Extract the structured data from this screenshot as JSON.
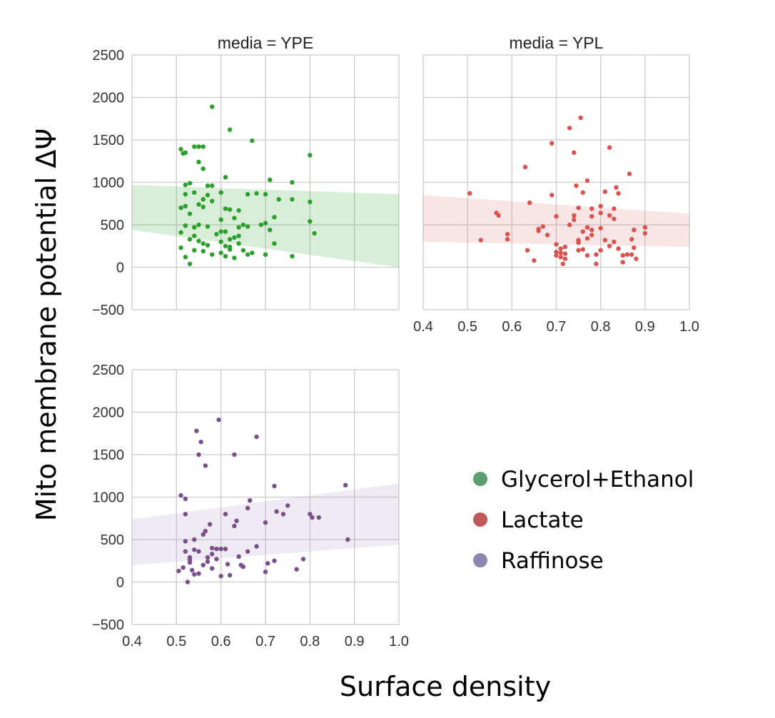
{
  "chart_data": {
    "type": "scatter",
    "xlabel": "Surface density",
    "ylabel": "Mito membrane potential ΔΨ",
    "xlim": [
      0.4,
      1.0
    ],
    "ylim": [
      -500,
      2500
    ],
    "xticks": [
      "0.4",
      "0.5",
      "0.6",
      "0.7",
      "0.8",
      "0.9",
      "1.0"
    ],
    "yticks": [
      "−500",
      "0",
      "500",
      "1000",
      "1500",
      "2000",
      "2500"
    ],
    "grid": true,
    "legend": {
      "placement": "right",
      "entries": [
        {
          "label": "Glycerol+Ethanol",
          "color": "#5a9e6f"
        },
        {
          "label": "Lactate",
          "color": "#c05a5a"
        },
        {
          "label": "Raffinose",
          "color": "#8c86b0"
        }
      ]
    },
    "panels": [
      {
        "title": "media = YPE",
        "series": "Glycerol+Ethanol",
        "point_color": "#2ca02c",
        "band_color": "#2ca02c",
        "show_xticks": false,
        "band": {
          "x": [
            0.4,
            1.0
          ],
          "upper": [
            970,
            860
          ],
          "lower": [
            440,
            0
          ]
        },
        "points": [
          [
            0.51,
            1390
          ],
          [
            0.515,
            1340
          ],
          [
            0.52,
            1350
          ],
          [
            0.54,
            1420
          ],
          [
            0.55,
            1420
          ],
          [
            0.56,
            1420
          ],
          [
            0.58,
            1890
          ],
          [
            0.55,
            1240
          ],
          [
            0.56,
            1160
          ],
          [
            0.52,
            970
          ],
          [
            0.53,
            990
          ],
          [
            0.57,
            960
          ],
          [
            0.58,
            960
          ],
          [
            0.52,
            860
          ],
          [
            0.54,
            880
          ],
          [
            0.57,
            850
          ],
          [
            0.56,
            800
          ],
          [
            0.52,
            720
          ],
          [
            0.51,
            700
          ],
          [
            0.53,
            630
          ],
          [
            0.55,
            740
          ],
          [
            0.56,
            710
          ],
          [
            0.58,
            780
          ],
          [
            0.52,
            490
          ],
          [
            0.54,
            470
          ],
          [
            0.55,
            500
          ],
          [
            0.57,
            480
          ],
          [
            0.51,
            410
          ],
          [
            0.53,
            330
          ],
          [
            0.54,
            370
          ],
          [
            0.55,
            310
          ],
          [
            0.56,
            280
          ],
          [
            0.57,
            260
          ],
          [
            0.51,
            230
          ],
          [
            0.52,
            120
          ],
          [
            0.53,
            40
          ],
          [
            0.54,
            200
          ],
          [
            0.56,
            190
          ],
          [
            0.58,
            150
          ],
          [
            0.6,
            880
          ],
          [
            0.61,
            1060
          ],
          [
            0.62,
            1620
          ],
          [
            0.6,
            560
          ],
          [
            0.61,
            690
          ],
          [
            0.62,
            680
          ],
          [
            0.63,
            580
          ],
          [
            0.64,
            670
          ],
          [
            0.65,
            500
          ],
          [
            0.66,
            480
          ],
          [
            0.66,
            860
          ],
          [
            0.67,
            1490
          ],
          [
            0.68,
            870
          ],
          [
            0.6,
            300
          ],
          [
            0.61,
            250
          ],
          [
            0.62,
            240
          ],
          [
            0.63,
            350
          ],
          [
            0.64,
            370
          ],
          [
            0.6,
            170
          ],
          [
            0.61,
            130
          ],
          [
            0.62,
            210
          ],
          [
            0.63,
            110
          ],
          [
            0.64,
            280
          ],
          [
            0.65,
            200
          ],
          [
            0.66,
            150
          ],
          [
            0.67,
            170
          ],
          [
            0.6,
            420
          ],
          [
            0.62,
            330
          ],
          [
            0.64,
            470
          ],
          [
            0.69,
            500
          ],
          [
            0.7,
            520
          ],
          [
            0.71,
            1030
          ],
          [
            0.7,
            860
          ],
          [
            0.71,
            440
          ],
          [
            0.72,
            590
          ],
          [
            0.7,
            150
          ],
          [
            0.72,
            280
          ],
          [
            0.73,
            800
          ],
          [
            0.76,
            1000
          ],
          [
            0.76,
            800
          ],
          [
            0.76,
            130
          ],
          [
            0.8,
            1320
          ],
          [
            0.8,
            770
          ],
          [
            0.8,
            540
          ],
          [
            0.81,
            400
          ],
          [
            0.59,
            390
          ],
          [
            0.61,
            420
          ]
        ]
      },
      {
        "title": "media = YPL",
        "series": "Lactate",
        "point_color": "#d9534f",
        "band_color": "#e07070",
        "show_xticks": true,
        "show_yticks": false,
        "band": {
          "x": [
            0.4,
            1.0
          ],
          "upper": [
            850,
            630
          ],
          "lower": [
            300,
            240
          ]
        },
        "points": [
          [
            0.505,
            870
          ],
          [
            0.53,
            320
          ],
          [
            0.565,
            640
          ],
          [
            0.57,
            610
          ],
          [
            0.59,
            390
          ],
          [
            0.59,
            330
          ],
          [
            0.63,
            1180
          ],
          [
            0.64,
            760
          ],
          [
            0.635,
            200
          ],
          [
            0.65,
            80
          ],
          [
            0.66,
            450
          ],
          [
            0.67,
            480
          ],
          [
            0.68,
            380
          ],
          [
            0.69,
            1460
          ],
          [
            0.69,
            850
          ],
          [
            0.7,
            600
          ],
          [
            0.7,
            270
          ],
          [
            0.7,
            180
          ],
          [
            0.7,
            140
          ],
          [
            0.71,
            120
          ],
          [
            0.71,
            220
          ],
          [
            0.715,
            40
          ],
          [
            0.72,
            240
          ],
          [
            0.72,
            160
          ],
          [
            0.72,
            100
          ],
          [
            0.73,
            1640
          ],
          [
            0.74,
            1350
          ],
          [
            0.74,
            610
          ],
          [
            0.74,
            560
          ],
          [
            0.745,
            960
          ],
          [
            0.75,
            700
          ],
          [
            0.75,
            320
          ],
          [
            0.75,
            290
          ],
          [
            0.75,
            200
          ],
          [
            0.755,
            1760
          ],
          [
            0.76,
            880
          ],
          [
            0.76,
            420
          ],
          [
            0.76,
            210
          ],
          [
            0.77,
            1020
          ],
          [
            0.77,
            470
          ],
          [
            0.77,
            340
          ],
          [
            0.77,
            140
          ],
          [
            0.78,
            380
          ],
          [
            0.78,
            690
          ],
          [
            0.78,
            600
          ],
          [
            0.79,
            150
          ],
          [
            0.79,
            40
          ],
          [
            0.8,
            720
          ],
          [
            0.8,
            640
          ],
          [
            0.8,
            460
          ],
          [
            0.8,
            200
          ],
          [
            0.81,
            890
          ],
          [
            0.81,
            320
          ],
          [
            0.82,
            1410
          ],
          [
            0.82,
            610
          ],
          [
            0.82,
            250
          ],
          [
            0.83,
            690
          ],
          [
            0.83,
            570
          ],
          [
            0.83,
            300
          ],
          [
            0.835,
            940
          ],
          [
            0.84,
            870
          ],
          [
            0.84,
            220
          ],
          [
            0.85,
            60
          ],
          [
            0.85,
            140
          ],
          [
            0.86,
            150
          ],
          [
            0.865,
            1100
          ],
          [
            0.87,
            330
          ],
          [
            0.87,
            150
          ],
          [
            0.875,
            440
          ],
          [
            0.875,
            230
          ],
          [
            0.88,
            100
          ],
          [
            0.9,
            470
          ],
          [
            0.9,
            400
          ],
          [
            0.66,
            430
          ],
          [
            0.71,
            170
          ],
          [
            0.78,
            440
          ],
          [
            0.73,
            500
          ]
        ]
      },
      {
        "title": "",
        "series": "Raffinose",
        "point_color": "#7b4f8c",
        "band_color": "#a58fb8",
        "show_xticks": true,
        "band": {
          "x": [
            0.4,
            1.0
          ],
          "upper": [
            740,
            1160
          ],
          "lower": [
            200,
            440
          ]
        },
        "points": [
          [
            0.505,
            130
          ],
          [
            0.51,
            1020
          ],
          [
            0.515,
            170
          ],
          [
            0.52,
            980
          ],
          [
            0.52,
            800
          ],
          [
            0.52,
            480
          ],
          [
            0.52,
            360
          ],
          [
            0.525,
            0
          ],
          [
            0.53,
            230
          ],
          [
            0.53,
            290
          ],
          [
            0.535,
            140
          ],
          [
            0.54,
            500
          ],
          [
            0.54,
            90
          ],
          [
            0.545,
            1780
          ],
          [
            0.55,
            1500
          ],
          [
            0.555,
            1650
          ],
          [
            0.55,
            360
          ],
          [
            0.55,
            100
          ],
          [
            0.56,
            560
          ],
          [
            0.56,
            200
          ],
          [
            0.565,
            1370
          ],
          [
            0.565,
            600
          ],
          [
            0.57,
            240
          ],
          [
            0.575,
            680
          ],
          [
            0.58,
            160
          ],
          [
            0.58,
            330
          ],
          [
            0.59,
            390
          ],
          [
            0.59,
            270
          ],
          [
            0.595,
            1910
          ],
          [
            0.6,
            390
          ],
          [
            0.6,
            70
          ],
          [
            0.61,
            800
          ],
          [
            0.61,
            390
          ],
          [
            0.615,
            210
          ],
          [
            0.62,
            80
          ],
          [
            0.63,
            1500
          ],
          [
            0.63,
            660
          ],
          [
            0.635,
            720
          ],
          [
            0.64,
            300
          ],
          [
            0.65,
            180
          ],
          [
            0.645,
            200
          ],
          [
            0.66,
            360
          ],
          [
            0.66,
            870
          ],
          [
            0.665,
            960
          ],
          [
            0.68,
            1710
          ],
          [
            0.68,
            420
          ],
          [
            0.7,
            120
          ],
          [
            0.7,
            700
          ],
          [
            0.705,
            220
          ],
          [
            0.72,
            250
          ],
          [
            0.72,
            1130
          ],
          [
            0.725,
            830
          ],
          [
            0.74,
            800
          ],
          [
            0.75,
            900
          ],
          [
            0.77,
            150
          ],
          [
            0.785,
            270
          ],
          [
            0.8,
            800
          ],
          [
            0.805,
            760
          ],
          [
            0.82,
            760
          ],
          [
            0.88,
            1140
          ],
          [
            0.885,
            500
          ],
          [
            0.53,
            260
          ],
          [
            0.54,
            380
          ],
          [
            0.57,
            290
          ],
          [
            0.58,
            400
          ]
        ]
      }
    ]
  }
}
